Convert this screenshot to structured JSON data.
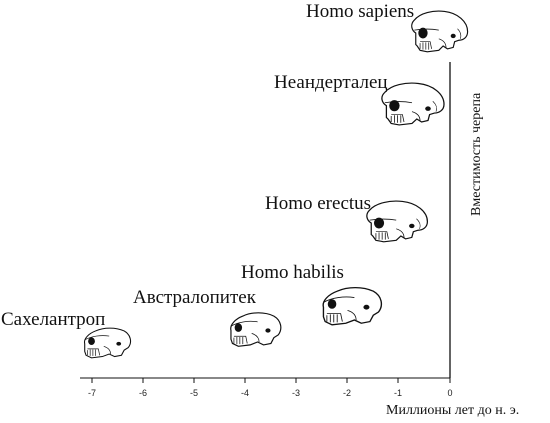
{
  "axis": {
    "x_caption": "Миллионы лет до н. э.",
    "y_caption": "Вместимость черепа",
    "ticks": [
      "-7",
      "-6",
      "-5",
      "-4",
      "-3",
      "-2",
      "-1",
      "0"
    ]
  },
  "species": [
    {
      "label": "Homo sapiens"
    },
    {
      "label": "Неандерталец"
    },
    {
      "label": "Homo erectus"
    },
    {
      "label": "Homo habilis"
    },
    {
      "label": "Австралопитек"
    },
    {
      "label": "Сахелантроп"
    }
  ],
  "colors": {
    "ink": "#111111",
    "bone": "#ffffff"
  }
}
